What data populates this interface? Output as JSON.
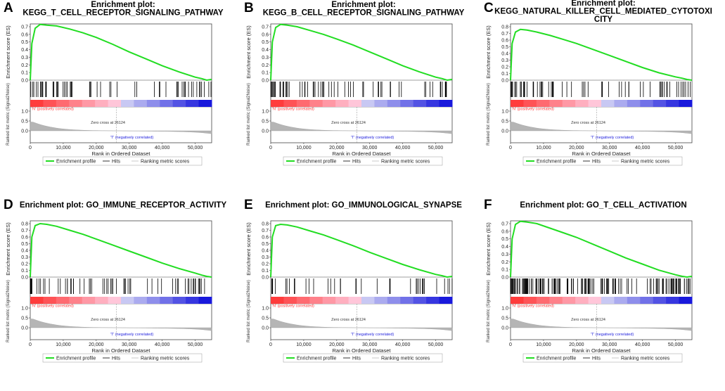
{
  "figure": {
    "x_axis_label": "Rank in Ordered Dataset",
    "es_axis_label": "Enrichment score (ES)",
    "metric_axis_label": "Ranked list metric (Signal2Noise)",
    "pos_note": "'N' (positively correlated)",
    "neg_note": "'T' (negatively correlated)",
    "zero_cross_note": "Zero cross at 26124",
    "legend": [
      "Enrichment profile",
      "Hits",
      "Ranking metric scores"
    ],
    "colors": {
      "profile": "#22dd22",
      "hits": "#000000",
      "metric": "#b5b5b5",
      "pos": "#ff3333",
      "neg": "#2222dd"
    }
  },
  "chart_data": [
    {
      "type": "line",
      "panel": "A",
      "title_lines": [
        "Enrichment plot:",
        "KEGG_T_CELL_RECEPTOR_SIGNALING_PATHWAY"
      ],
      "ylim": [
        0,
        0.7
      ],
      "yticks": [
        "0.0",
        "0.1",
        "0.2",
        "0.3",
        "0.4",
        "0.5",
        "0.6",
        "0.7"
      ],
      "xticks": [
        "0",
        "10,000",
        "20,000",
        "30,000",
        "40,000",
        "50,000"
      ],
      "xlim": [
        0,
        55000
      ],
      "profile_x": [
        0,
        500,
        1500,
        3000,
        5000,
        8000,
        12000,
        16000,
        20000,
        25000,
        30000,
        35000,
        40000,
        45000,
        50000,
        52000,
        53500,
        55000
      ],
      "profile_y": [
        0.0,
        0.48,
        0.68,
        0.73,
        0.72,
        0.71,
        0.67,
        0.62,
        0.56,
        0.47,
        0.37,
        0.28,
        0.19,
        0.11,
        0.04,
        0.02,
        0.0,
        0.01
      ],
      "metric_y": [
        "1.0",
        "0.5",
        "0.0"
      ],
      "zero_cross": 26124,
      "hits_density": "medium"
    },
    {
      "type": "line",
      "panel": "B",
      "title_lines": [
        "Enrichment plot:",
        "KEGG_B_CELL_RECEPTOR_SIGNALING_PATHWAY"
      ],
      "ylim": [
        0,
        0.7
      ],
      "yticks": [
        "0.0",
        "0.1",
        "0.2",
        "0.3",
        "0.4",
        "0.5",
        "0.6",
        "0.7"
      ],
      "xticks": [
        "0",
        "10,000",
        "20,000",
        "30,000",
        "40,000",
        "50,000"
      ],
      "xlim": [
        0,
        55000
      ],
      "profile_x": [
        0,
        500,
        1500,
        3000,
        5000,
        8000,
        12000,
        16000,
        20000,
        25000,
        30000,
        35000,
        40000,
        45000,
        50000,
        52000,
        53500,
        55000
      ],
      "profile_y": [
        0.0,
        0.5,
        0.69,
        0.73,
        0.72,
        0.7,
        0.65,
        0.6,
        0.54,
        0.46,
        0.37,
        0.28,
        0.19,
        0.11,
        0.04,
        0.02,
        0.0,
        0.01
      ],
      "metric_y": [
        "1.0",
        "0.5",
        "0.0"
      ],
      "zero_cross": 26124,
      "hits_density": "medium"
    },
    {
      "type": "line",
      "panel": "C",
      "title_lines": [
        "Enrichment plot:",
        "KEGG_NATURAL_KILLER_CELL_MEDIATED_CYTOTOXI",
        "CITY"
      ],
      "ylim": [
        0,
        0.8
      ],
      "yticks": [
        "0.0",
        "0.1",
        "0.2",
        "0.3",
        "0.4",
        "0.5",
        "0.6",
        "0.7",
        "0.8"
      ],
      "xticks": [
        "0",
        "10,000",
        "20,000",
        "30,000",
        "40,000",
        "50,000"
      ],
      "xlim": [
        0,
        55000
      ],
      "profile_x": [
        0,
        500,
        1500,
        3000,
        5000,
        8000,
        12000,
        16000,
        20000,
        25000,
        30000,
        35000,
        40000,
        45000,
        50000,
        52000,
        53500,
        55000
      ],
      "profile_y": [
        0.0,
        0.55,
        0.72,
        0.76,
        0.75,
        0.72,
        0.67,
        0.61,
        0.55,
        0.46,
        0.37,
        0.28,
        0.19,
        0.11,
        0.05,
        0.03,
        0.01,
        0.0
      ],
      "metric_y": [
        "1.0",
        "0.5",
        "0.0"
      ],
      "zero_cross": 26124,
      "hits_density": "medium"
    },
    {
      "type": "line",
      "panel": "D",
      "title_lines": [
        "Enrichment plot: GO_IMMUNE_RECEPTOR_ACTIVITY"
      ],
      "ylim": [
        0,
        0.8
      ],
      "yticks": [
        "0.0",
        "0.1",
        "0.2",
        "0.3",
        "0.4",
        "0.5",
        "0.6",
        "0.7",
        "0.8"
      ],
      "xticks": [
        "0",
        "10,000",
        "20,000",
        "30,000",
        "40,000",
        "50,000"
      ],
      "xlim": [
        0,
        55000
      ],
      "profile_x": [
        0,
        500,
        1500,
        3000,
        5000,
        8000,
        12000,
        16000,
        20000,
        25000,
        30000,
        35000,
        40000,
        45000,
        50000,
        52000,
        53500,
        55000
      ],
      "profile_y": [
        0.0,
        0.6,
        0.77,
        0.8,
        0.79,
        0.76,
        0.7,
        0.64,
        0.57,
        0.48,
        0.39,
        0.3,
        0.21,
        0.13,
        0.06,
        0.03,
        0.01,
        0.0
      ],
      "metric_y": [
        "1.0",
        "0.5",
        "0.0"
      ],
      "zero_cross": 26124,
      "hits_density": "medium"
    },
    {
      "type": "line",
      "panel": "E",
      "title_lines": [
        "Enrichment plot: GO_IMMUNOLOGICAL_SYNAPSE"
      ],
      "ylim": [
        0,
        0.8
      ],
      "yticks": [
        "0.0",
        "0.1",
        "0.2",
        "0.3",
        "0.4",
        "0.5",
        "0.6",
        "0.7",
        "0.8"
      ],
      "xticks": [
        "0",
        "10,000",
        "20,000",
        "30,000",
        "40,000",
        "50,000"
      ],
      "xlim": [
        0,
        55000
      ],
      "profile_x": [
        0,
        500,
        1500,
        3000,
        5000,
        8000,
        12000,
        16000,
        20000,
        25000,
        30000,
        35000,
        40000,
        45000,
        50000,
        52000,
        53500,
        55000
      ],
      "profile_y": [
        0.0,
        0.6,
        0.77,
        0.79,
        0.78,
        0.75,
        0.69,
        0.63,
        0.56,
        0.47,
        0.37,
        0.28,
        0.19,
        0.11,
        0.04,
        0.02,
        0.0,
        0.01
      ],
      "metric_y": [
        "1.0",
        "0.5",
        "0.0"
      ],
      "zero_cross": 26124,
      "hits_density": "sparse"
    },
    {
      "type": "line",
      "panel": "F",
      "title_lines": [
        "Enrichment plot: GO_T_CELL_ACTIVATION"
      ],
      "ylim": [
        0,
        0.7
      ],
      "yticks": [
        "0.0",
        "0.1",
        "0.2",
        "0.3",
        "0.4",
        "0.5",
        "0.6",
        "0.7"
      ],
      "xticks": [
        "0",
        "10,000",
        "20,000",
        "30,000",
        "40,000",
        "50,000"
      ],
      "xlim": [
        0,
        55000
      ],
      "profile_x": [
        0,
        500,
        1500,
        3000,
        5000,
        8000,
        12000,
        16000,
        20000,
        25000,
        30000,
        35000,
        40000,
        45000,
        50000,
        52000,
        53500,
        55000
      ],
      "profile_y": [
        0.0,
        0.5,
        0.69,
        0.73,
        0.72,
        0.7,
        0.64,
        0.58,
        0.52,
        0.43,
        0.34,
        0.25,
        0.17,
        0.09,
        0.03,
        0.01,
        0.0,
        0.01
      ],
      "metric_y": [
        "1.0",
        "0.5",
        "0.0"
      ],
      "zero_cross": 26124,
      "hits_density": "dense"
    }
  ]
}
